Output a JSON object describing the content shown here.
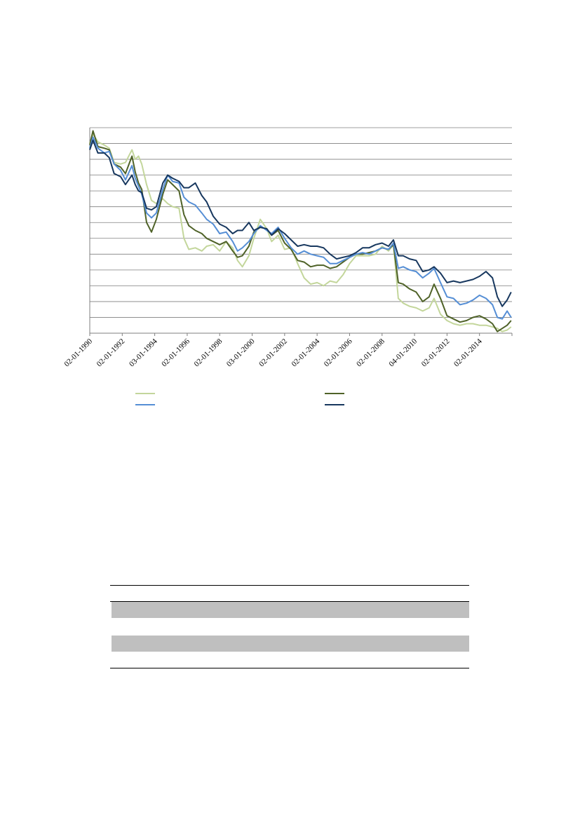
{
  "colors": {
    "accent_rule": "#c3d69b",
    "series_light_green": "#c3d69b",
    "series_dark_green": "#4f6228",
    "series_light_blue": "#558ed5",
    "series_dark_navy": "#17375e",
    "grid": "#7f7f7f",
    "table_shade": "#bfbfbf"
  },
  "chart_data": {
    "type": "line",
    "x_tick_labels": [
      "02-01-1990",
      "02-01-1992",
      "03-01-1994",
      "02-01-1996",
      "02-01-1998",
      "03-01-2000",
      "02-01-2002",
      "02-01-2004",
      "02-01-2006",
      "02-01-2008",
      "04-01-2010",
      "02-01-2012",
      "02-01-2014"
    ],
    "xlim": [
      1990.0,
      2016.0
    ],
    "ylim": [
      0,
      13
    ],
    "grid": true,
    "legend_position": "bottom",
    "series": [
      {
        "color_key": "series_light_green",
        "x": [
          1990.0,
          1990.2,
          1990.5,
          1990.9,
          1991.2,
          1991.5,
          1991.9,
          1992.2,
          1992.6,
          1992.8,
          1993.0,
          1993.2,
          1993.5,
          1993.8,
          1994.1,
          1994.5,
          1994.8,
          1995.1,
          1995.5,
          1995.8,
          1996.1,
          1996.5,
          1996.9,
          1997.2,
          1997.6,
          1998.0,
          1998.4,
          1998.8,
          1999.1,
          1999.4,
          1999.8,
          2000.1,
          2000.5,
          2000.9,
          2001.2,
          2001.6,
          2002.0,
          2002.4,
          2002.8,
          2003.2,
          2003.6,
          2004.0,
          2004.4,
          2004.8,
          2005.2,
          2005.6,
          2006.0,
          2006.4,
          2006.8,
          2007.2,
          2007.6,
          2008.0,
          2008.4,
          2008.7,
          2009.0,
          2009.3,
          2009.7,
          2010.1,
          2010.5,
          2010.9,
          2011.2,
          2011.6,
          2012.0,
          2012.4,
          2012.8,
          2013.2,
          2013.6,
          2014.0,
          2014.4,
          2014.8,
          2015.1,
          2015.4,
          2015.7,
          2015.95
        ],
        "y": [
          12.0,
          12.6,
          12.1,
          11.9,
          11.7,
          10.8,
          10.7,
          10.8,
          11.6,
          11.0,
          11.2,
          10.7,
          9.4,
          8.4,
          8.2,
          8.5,
          8.2,
          8.0,
          7.9,
          6.0,
          5.3,
          5.4,
          5.2,
          5.5,
          5.6,
          5.2,
          5.8,
          5.4,
          4.6,
          4.2,
          4.9,
          6.0,
          7.2,
          6.6,
          5.8,
          6.2,
          5.3,
          5.4,
          4.4,
          3.5,
          3.1,
          3.2,
          3.0,
          3.3,
          3.2,
          3.7,
          4.4,
          4.9,
          4.9,
          4.9,
          5.0,
          5.5,
          5.2,
          5.6,
          2.2,
          1.9,
          1.7,
          1.6,
          1.4,
          1.6,
          2.2,
          1.2,
          0.8,
          0.6,
          0.5,
          0.6,
          0.6,
          0.5,
          0.5,
          0.4,
          0.3,
          0.1,
          0.2,
          0.4
        ]
      },
      {
        "color_key": "series_dark_green",
        "x": [
          1990.0,
          1990.2,
          1990.5,
          1990.9,
          1991.2,
          1991.5,
          1991.9,
          1992.2,
          1992.6,
          1992.8,
          1993.0,
          1993.2,
          1993.5,
          1993.8,
          1994.1,
          1994.5,
          1994.8,
          1995.1,
          1995.5,
          1995.8,
          1996.1,
          1996.5,
          1996.9,
          1997.2,
          1997.6,
          1998.0,
          1998.4,
          1998.8,
          1999.1,
          1999.4,
          1999.8,
          2000.1,
          2000.5,
          2000.9,
          2001.2,
          2001.6,
          2002.0,
          2002.4,
          2002.8,
          2003.2,
          2003.6,
          2004.0,
          2004.4,
          2004.8,
          2005.2,
          2005.6,
          2006.0,
          2006.4,
          2006.8,
          2007.2,
          2007.6,
          2008.0,
          2008.4,
          2008.7,
          2009.0,
          2009.3,
          2009.7,
          2010.1,
          2010.5,
          2010.9,
          2011.2,
          2011.6,
          2012.0,
          2012.4,
          2012.8,
          2013.2,
          2013.6,
          2014.0,
          2014.4,
          2014.8,
          2015.1,
          2015.4,
          2015.7,
          2015.95
        ],
        "y": [
          11.9,
          12.8,
          11.8,
          11.7,
          11.6,
          10.7,
          10.5,
          10.1,
          11.2,
          10.2,
          9.5,
          9.1,
          7.0,
          6.4,
          7.2,
          8.8,
          9.7,
          9.4,
          9.0,
          7.5,
          6.8,
          6.5,
          6.3,
          6.0,
          5.8,
          5.6,
          5.8,
          5.2,
          4.8,
          4.9,
          5.5,
          6.4,
          6.7,
          6.6,
          6.2,
          6.5,
          5.7,
          5.3,
          4.6,
          4.5,
          4.2,
          4.3,
          4.3,
          4.1,
          4.2,
          4.5,
          4.8,
          5.0,
          5.0,
          5.1,
          5.2,
          5.4,
          5.3,
          5.6,
          3.2,
          3.1,
          2.8,
          2.6,
          2.0,
          2.3,
          3.1,
          2.2,
          1.1,
          0.9,
          0.7,
          0.8,
          1.0,
          1.1,
          0.9,
          0.6,
          0.1,
          0.3,
          0.5,
          0.8
        ]
      },
      {
        "color_key": "series_light_blue",
        "x": [
          1990.0,
          1990.2,
          1990.5,
          1990.9,
          1991.2,
          1991.5,
          1991.9,
          1992.2,
          1992.6,
          1992.8,
          1993.0,
          1993.2,
          1993.5,
          1993.8,
          1994.1,
          1994.5,
          1994.8,
          1995.1,
          1995.5,
          1995.8,
          1996.1,
          1996.5,
          1996.9,
          1997.2,
          1997.6,
          1998.0,
          1998.4,
          1998.8,
          1999.1,
          1999.4,
          1999.8,
          2000.1,
          2000.5,
          2000.9,
          2001.2,
          2001.6,
          2002.0,
          2002.4,
          2002.8,
          2003.2,
          2003.6,
          2004.0,
          2004.4,
          2004.8,
          2005.2,
          2005.6,
          2006.0,
          2006.4,
          2006.8,
          2007.2,
          2007.6,
          2008.0,
          2008.4,
          2008.7,
          2009.0,
          2009.3,
          2009.7,
          2010.1,
          2010.5,
          2010.9,
          2011.2,
          2011.6,
          2012.0,
          2012.4,
          2012.8,
          2013.2,
          2013.6,
          2014.0,
          2014.4,
          2014.8,
          2015.1,
          2015.4,
          2015.7,
          2015.95
        ],
        "y": [
          11.7,
          12.4,
          11.7,
          11.4,
          11.5,
          10.7,
          10.3,
          9.7,
          10.6,
          9.8,
          9.3,
          8.8,
          7.6,
          7.3,
          7.6,
          9.1,
          10.0,
          9.6,
          9.5,
          8.6,
          8.3,
          8.1,
          7.6,
          7.2,
          6.9,
          6.3,
          6.4,
          5.8,
          5.2,
          5.4,
          5.8,
          6.3,
          6.8,
          6.5,
          6.3,
          6.7,
          6.0,
          5.4,
          5.0,
          5.2,
          5.0,
          4.9,
          4.8,
          4.4,
          4.4,
          4.6,
          4.8,
          5.0,
          5.1,
          5.0,
          5.2,
          5.4,
          5.3,
          5.7,
          4.1,
          4.2,
          4.0,
          3.9,
          3.5,
          3.8,
          4.1,
          3.2,
          2.3,
          2.2,
          1.8,
          1.9,
          2.1,
          2.4,
          2.2,
          1.8,
          1.0,
          0.9,
          1.4,
          1.0
        ]
      },
      {
        "color_key": "series_dark_navy",
        "x": [
          1990.0,
          1990.2,
          1990.5,
          1990.9,
          1991.2,
          1991.5,
          1991.9,
          1992.2,
          1992.6,
          1992.8,
          1993.0,
          1993.2,
          1993.5,
          1993.8,
          1994.1,
          1994.5,
          1994.8,
          1995.1,
          1995.5,
          1995.8,
          1996.1,
          1996.5,
          1996.9,
          1997.2,
          1997.6,
          1998.0,
          1998.4,
          1998.8,
          1999.1,
          1999.4,
          1999.8,
          2000.1,
          2000.5,
          2000.9,
          2001.2,
          2001.6,
          2002.0,
          2002.4,
          2002.8,
          2003.2,
          2003.6,
          2004.0,
          2004.4,
          2004.8,
          2005.2,
          2005.6,
          2006.0,
          2006.4,
          2006.8,
          2007.2,
          2007.6,
          2008.0,
          2008.4,
          2008.7,
          2009.0,
          2009.3,
          2009.7,
          2010.1,
          2010.5,
          2010.9,
          2011.2,
          2011.6,
          2012.0,
          2012.4,
          2012.8,
          2013.2,
          2013.6,
          2014.0,
          2014.4,
          2014.8,
          2015.1,
          2015.4,
          2015.7,
          2015.95
        ],
        "y": [
          11.6,
          12.2,
          11.4,
          11.4,
          11.1,
          10.1,
          9.9,
          9.4,
          10.0,
          9.4,
          9.0,
          8.9,
          7.9,
          7.8,
          8.0,
          9.5,
          10.0,
          9.8,
          9.6,
          9.2,
          9.2,
          9.5,
          8.7,
          8.3,
          7.4,
          6.9,
          6.7,
          6.3,
          6.5,
          6.5,
          7.0,
          6.5,
          6.7,
          6.6,
          6.2,
          6.6,
          6.3,
          5.9,
          5.5,
          5.6,
          5.5,
          5.5,
          5.4,
          5.0,
          4.7,
          4.8,
          4.9,
          5.1,
          5.4,
          5.4,
          5.6,
          5.7,
          5.5,
          5.9,
          4.9,
          4.9,
          4.7,
          4.6,
          3.9,
          4.0,
          4.2,
          3.8,
          3.2,
          3.3,
          3.2,
          3.3,
          3.4,
          3.6,
          3.9,
          3.5,
          2.3,
          1.7,
          2.1,
          2.6
        ]
      }
    ]
  }
}
